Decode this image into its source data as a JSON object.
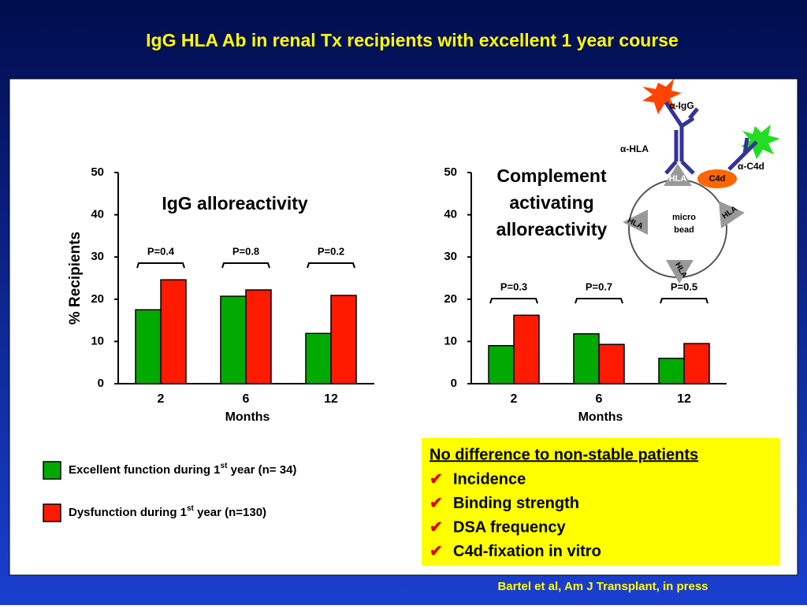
{
  "title": "IgG HLA Ab in renal Tx recipients with excellent 1 year course",
  "citation": "Bartel et al, Am J Transplant, in press",
  "box": {
    "heading": "No difference to non-stable patients",
    "items": [
      "Incidence",
      "Binding strength",
      "DSA frequency",
      "C4d-fixation in vitro"
    ]
  },
  "diagram": {
    "labels": [
      "α-IgG",
      "α-HLA",
      "HLA",
      "C4d",
      "α-C4d",
      "micro",
      "bead",
      "HLA",
      "HLA",
      "HLA"
    ]
  },
  "chart_data": [
    {
      "type": "bar",
      "title": "IgG alloreactivity",
      "x_label": "Months",
      "y_label": "% Recipients",
      "categories": [
        "2",
        "6",
        "12"
      ],
      "p_values": [
        "P=0.4",
        "P=0.8",
        "P=0.2"
      ],
      "series": [
        {
          "name": "Excellent function during 1st year (n= 34)",
          "color": "#00aa00",
          "values": [
            17.5,
            20.7,
            11.9
          ]
        },
        {
          "name": "Dysfunction during 1st year (n=130)",
          "color": "#ff1a00",
          "values": [
            24.6,
            22.2,
            20.9
          ]
        }
      ],
      "ylim": [
        0,
        50
      ],
      "yticks": [
        0,
        10,
        20,
        30,
        40,
        50
      ]
    },
    {
      "type": "bar",
      "title": "Complement activating alloreactivity",
      "x_label": "Months",
      "categories": [
        "2",
        "6",
        "12"
      ],
      "p_values": [
        "P=0.3",
        "P=0.7",
        "P=0.5"
      ],
      "series": [
        {
          "color": "#00aa00",
          "values": [
            9.0,
            11.8,
            6.0
          ]
        },
        {
          "color": "#ff1a00",
          "values": [
            16.2,
            9.3,
            9.5
          ]
        }
      ],
      "ylim": [
        0,
        50
      ],
      "yticks": [
        0,
        10,
        20,
        30,
        40,
        50
      ]
    }
  ]
}
